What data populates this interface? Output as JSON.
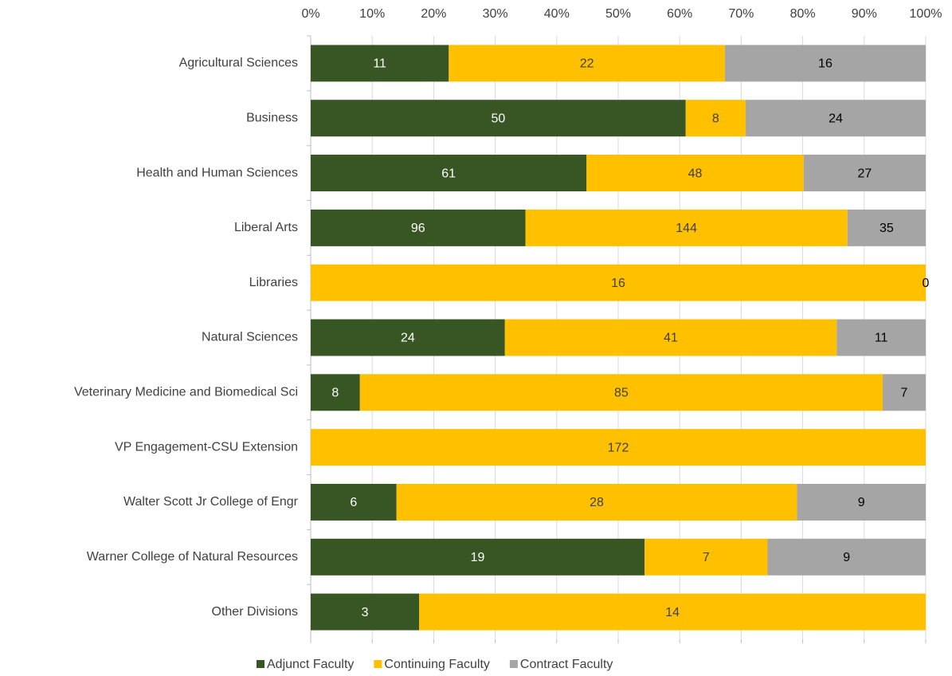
{
  "chart_data": {
    "type": "bar",
    "orientation": "horizontal",
    "stacked": "percent",
    "categories": [
      "Agricultural Sciences",
      "Business",
      "Health and Human Sciences",
      "Liberal Arts",
      "Libraries",
      "Natural Sciences",
      "Veterinary Medicine and Biomedical Sci",
      "VP Engagement-CSU Extension",
      "Walter Scott Jr College of Engr",
      "Warner College of Natural Resources",
      "Other Divisions"
    ],
    "series": [
      {
        "name": "Adjunct Faculty",
        "color": "#375623",
        "label_color": "#ffffff",
        "values": [
          11,
          50,
          61,
          96,
          0,
          24,
          8,
          null,
          6,
          19,
          3
        ]
      },
      {
        "name": "Continuing Faculty",
        "color": "#ffc000",
        "label_color": "#404040",
        "values": [
          22,
          8,
          48,
          144,
          16,
          41,
          85,
          172,
          28,
          7,
          14
        ]
      },
      {
        "name": "Contract Faculty",
        "color": "#a5a5a5",
        "label_color": "#000000",
        "values": [
          16,
          24,
          27,
          35,
          0,
          11,
          7,
          null,
          9,
          9,
          null
        ]
      }
    ],
    "xlim": [
      0,
      100
    ],
    "xticks": [
      {
        "value": 0,
        "label": "0%"
      },
      {
        "value": 10,
        "label": "10%"
      },
      {
        "value": 20,
        "label": "20%"
      },
      {
        "value": 30,
        "label": "30%"
      },
      {
        "value": 40,
        "label": "40%"
      },
      {
        "value": 50,
        "label": "50%"
      },
      {
        "value": 60,
        "label": "60%"
      },
      {
        "value": 70,
        "label": "70%"
      },
      {
        "value": 80,
        "label": "80%"
      },
      {
        "value": 90,
        "label": "90%"
      },
      {
        "value": 100,
        "label": "100%"
      }
    ],
    "grid": true,
    "legend": "bottom"
  }
}
